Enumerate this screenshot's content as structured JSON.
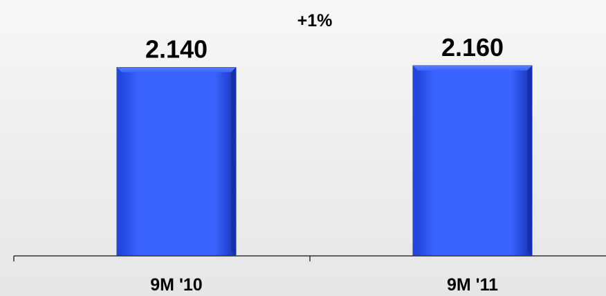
{
  "chart_data": {
    "type": "bar",
    "categories": [
      "9M '10",
      "9M '11"
    ],
    "values": [
      2140,
      2160
    ],
    "value_labels": [
      "2.140",
      "2.160"
    ],
    "annotation": "+1%",
    "ylim": [
      0,
      2400
    ],
    "grid": false,
    "legend": "none",
    "bar_color": "#2f5bff",
    "bar_edge_color": "#1a2f8c",
    "axis_color": "#333333"
  }
}
